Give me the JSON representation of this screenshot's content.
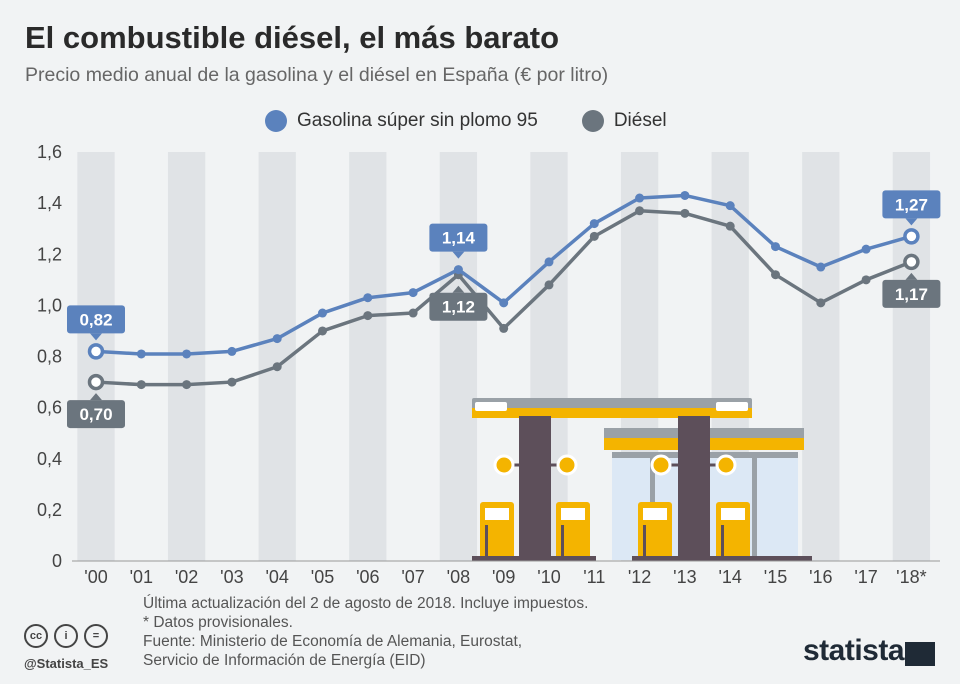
{
  "header": {
    "title": "El combustible diésel, el más barato",
    "subtitle": "Precio medio anual de la gasolina y el diésel en España (€ por litro)"
  },
  "legend": {
    "gasolina_label": "Gasolina súper sin plomo 95",
    "diesel_label": "Diésel"
  },
  "chart_data": {
    "type": "line",
    "x": [
      "'00",
      "'01",
      "'02",
      "'03",
      "'04",
      "'05",
      "'06",
      "'07",
      "'08",
      "'09",
      "'10",
      "'11",
      "'12",
      "'13",
      "'14",
      "'15",
      "'16",
      "'17",
      "'18*"
    ],
    "ylim": [
      0,
      1.6
    ],
    "yticks": [
      "0",
      "0,2",
      "0,4",
      "0,6",
      "0,8",
      "1,0",
      "1,2",
      "1,4",
      "1,6"
    ],
    "grid": "alternating vertical bands",
    "series": [
      {
        "name": "Gasolina súper sin plomo 95",
        "color": "#5b82bd",
        "values": [
          0.82,
          0.81,
          0.81,
          0.82,
          0.87,
          0.97,
          1.03,
          1.05,
          1.14,
          1.01,
          1.17,
          1.32,
          1.42,
          1.43,
          1.39,
          1.23,
          1.15,
          1.22,
          1.27
        ]
      },
      {
        "name": "Diésel",
        "color": "#6b757e",
        "values": [
          0.7,
          0.69,
          0.69,
          0.7,
          0.76,
          0.9,
          0.96,
          0.97,
          1.12,
          0.91,
          1.08,
          1.27,
          1.37,
          1.36,
          1.31,
          1.12,
          1.01,
          1.1,
          1.17
        ]
      }
    ],
    "annotations": [
      "0,82",
      "0,70",
      "1,14",
      "1,12",
      "1,27",
      "1,17"
    ]
  },
  "footer": {
    "line1": "Última actualización del 2 de agosto de 2018. Incluye impuestos.",
    "line2": "* Datos provisionales.",
    "line3": "Fuente: Ministerio de Economía de Alemania, Eurostat,",
    "line4": "Servicio de Información de Energía (EID)"
  },
  "branding": {
    "handle": "@Statista_ES",
    "logo": "statista"
  }
}
